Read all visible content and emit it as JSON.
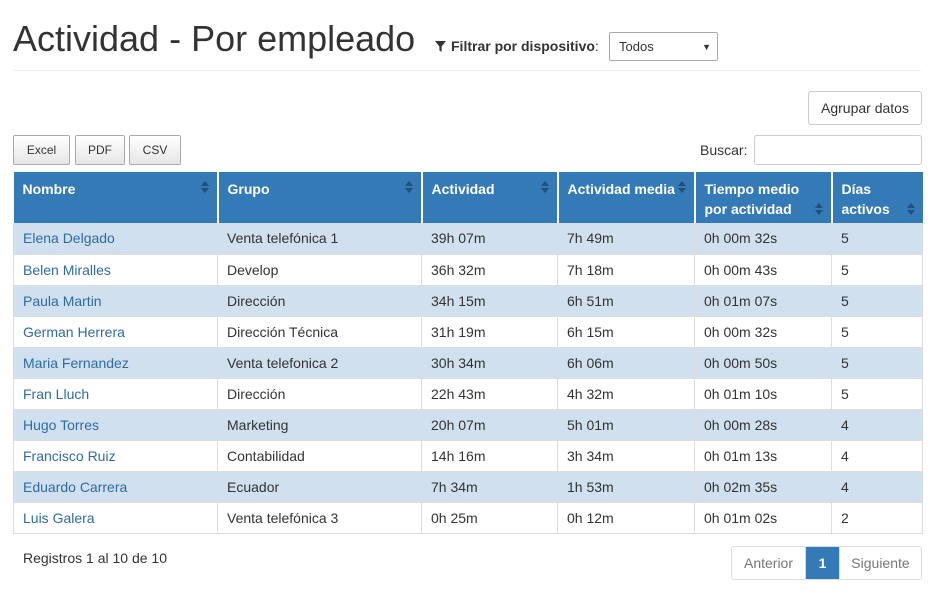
{
  "header": {
    "title": "Actividad - Por empleado",
    "filter_label": "Filtrar por dispositivo",
    "filter_colon": ":",
    "device_select_value": "Todos"
  },
  "toolbar": {
    "group_button": "Agrupar datos",
    "export_buttons": [
      "Excel",
      "PDF",
      "CSV"
    ],
    "search_label": "Buscar:",
    "search_value": ""
  },
  "table": {
    "columns": [
      [
        "Nombre"
      ],
      [
        "Grupo"
      ],
      [
        "Actividad"
      ],
      [
        "Actividad media"
      ],
      [
        "Tiempo medio",
        "por actividad"
      ],
      [
        "Días",
        "activos"
      ]
    ],
    "rows": [
      [
        "Elena Delgado",
        "Venta telefónica 1",
        "39h 07m",
        "7h 49m",
        "0h 00m 32s",
        "5"
      ],
      [
        "Belen Miralles",
        "Develop",
        "36h 32m",
        "7h 18m",
        "0h 00m 43s",
        "5"
      ],
      [
        "Paula Martin",
        "Dirección",
        "34h 15m",
        "6h 51m",
        "0h 01m 07s",
        "5"
      ],
      [
        "German Herrera",
        "Dirección Técnica",
        "31h 19m",
        "6h 15m",
        "0h 00m 32s",
        "5"
      ],
      [
        "Maria Fernandez",
        "Venta telefonica 2",
        "30h 34m",
        "6h 06m",
        "0h 00m 50s",
        "5"
      ],
      [
        "Fran Lluch",
        "Dirección",
        "22h 43m",
        "4h 32m",
        "0h 01m 10s",
        "5"
      ],
      [
        "Hugo Torres",
        "Marketing",
        "20h 07m",
        "5h 01m",
        "0h 00m 28s",
        "4"
      ],
      [
        "Francisco Ruiz",
        "Contabilidad",
        "14h 16m",
        "3h 34m",
        "0h 01m 13s",
        "4"
      ],
      [
        "Eduardo Carrera",
        "Ecuador",
        "7h 34m",
        "1h 53m",
        "0h 02m 35s",
        "4"
      ],
      [
        "Luis Galera",
        "Venta telefónica 3",
        "0h 25m",
        "0h 12m",
        "0h 01m 02s",
        "2"
      ]
    ]
  },
  "footer": {
    "records_info": "Registros 1 al 10 de 10",
    "prev_label": "Anterior",
    "current_page": "1",
    "next_label": "Siguiente"
  },
  "colors": {
    "header_blue": "#337ab7",
    "row_stripe": "#d0e0ee",
    "link": "#2f6ba3"
  },
  "icons": {
    "filter": "filter-icon",
    "sort": "sort-icon",
    "dropdown": "caret-down-icon"
  }
}
